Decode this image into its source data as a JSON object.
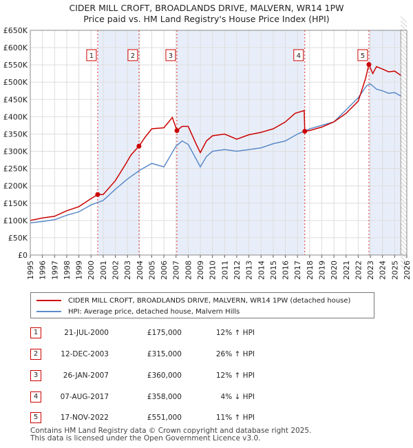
{
  "title": "CIDER MILL CROFT, BROADLANDS DRIVE, MALVERN, WR14 1PW",
  "subtitle": "Price paid vs. HM Land Registry's House Price Index (HPI)",
  "chart_data": {
    "type": "line",
    "x_range": [
      1995,
      2026
    ],
    "ylim": [
      0,
      650000
    ],
    "y_ticks": [
      {
        "v": 0,
        "label": "£0"
      },
      {
        "v": 50000,
        "label": "£50K"
      },
      {
        "v": 100000,
        "label": "£100K"
      },
      {
        "v": 150000,
        "label": "£150K"
      },
      {
        "v": 200000,
        "label": "£200K"
      },
      {
        "v": 250000,
        "label": "£250K"
      },
      {
        "v": 300000,
        "label": "£300K"
      },
      {
        "v": 350000,
        "label": "£350K"
      },
      {
        "v": 400000,
        "label": "£400K"
      },
      {
        "v": 450000,
        "label": "£450K"
      },
      {
        "v": 500000,
        "label": "£500K"
      },
      {
        "v": 550000,
        "label": "£550K"
      },
      {
        "v": 600000,
        "label": "£600K"
      },
      {
        "v": 650000,
        "label": "£650K"
      }
    ],
    "x_ticks": [
      "1995",
      "1996",
      "1997",
      "1998",
      "1999",
      "2000",
      "2001",
      "2002",
      "2003",
      "2004",
      "2005",
      "2006",
      "2007",
      "2008",
      "2009",
      "2010",
      "2011",
      "2012",
      "2013",
      "2014",
      "2015",
      "2016",
      "2017",
      "2018",
      "2019",
      "2020",
      "2021",
      "2022",
      "2023",
      "2024",
      "2025",
      "2026"
    ],
    "series": [
      {
        "name": "CIDER MILL CROFT, BROADLANDS DRIVE, MALVERN, WR14 1PW (detached house)",
        "color": "#cc0000",
        "points": [
          [
            1995,
            100000
          ],
          [
            1996,
            107000
          ],
          [
            1997,
            112000
          ],
          [
            1998,
            128000
          ],
          [
            1999,
            140000
          ],
          [
            2000,
            163000
          ],
          [
            2000.55,
            175000
          ],
          [
            2001,
            175000
          ],
          [
            2002,
            215000
          ],
          [
            2002.8,
            260000
          ],
          [
            2003.3,
            290000
          ],
          [
            2003.95,
            315000
          ],
          [
            2004.5,
            343000
          ],
          [
            2005,
            365000
          ],
          [
            2006,
            368000
          ],
          [
            2006.7,
            398000
          ],
          [
            2007.07,
            360000
          ],
          [
            2007.5,
            372000
          ],
          [
            2008,
            372000
          ],
          [
            2008.7,
            318000
          ],
          [
            2009,
            296000
          ],
          [
            2009.5,
            330000
          ],
          [
            2010,
            345000
          ],
          [
            2011,
            350000
          ],
          [
            2012,
            335000
          ],
          [
            2013,
            348000
          ],
          [
            2014,
            355000
          ],
          [
            2015,
            365000
          ],
          [
            2016,
            385000
          ],
          [
            2016.8,
            410000
          ],
          [
            2017.55,
            418000
          ],
          [
            2017.6,
            358000
          ],
          [
            2018,
            360000
          ],
          [
            2019,
            370000
          ],
          [
            2020,
            385000
          ],
          [
            2021,
            410000
          ],
          [
            2022,
            445000
          ],
          [
            2022.6,
            510000
          ],
          [
            2022.88,
            551000
          ],
          [
            2023.2,
            525000
          ],
          [
            2023.5,
            545000
          ],
          [
            2024,
            538000
          ],
          [
            2024.5,
            530000
          ],
          [
            2025,
            532000
          ],
          [
            2025.5,
            520000
          ]
        ]
      },
      {
        "name": "HPI: Average price, detached house, Malvern Hills",
        "color": "#5b8ac8",
        "points": [
          [
            1995,
            93000
          ],
          [
            1996,
            97000
          ],
          [
            1997,
            102000
          ],
          [
            1998,
            115000
          ],
          [
            1999,
            125000
          ],
          [
            2000,
            145000
          ],
          [
            2001,
            158000
          ],
          [
            2002,
            190000
          ],
          [
            2003,
            220000
          ],
          [
            2004,
            245000
          ],
          [
            2005,
            265000
          ],
          [
            2006,
            255000
          ],
          [
            2007,
            315000
          ],
          [
            2007.5,
            330000
          ],
          [
            2008,
            320000
          ],
          [
            2008.7,
            275000
          ],
          [
            2009,
            255000
          ],
          [
            2009.5,
            285000
          ],
          [
            2010,
            300000
          ],
          [
            2011,
            305000
          ],
          [
            2012,
            300000
          ],
          [
            2013,
            305000
          ],
          [
            2014,
            310000
          ],
          [
            2015,
            322000
          ],
          [
            2016,
            330000
          ],
          [
            2017,
            350000
          ],
          [
            2018,
            365000
          ],
          [
            2019,
            375000
          ],
          [
            2020,
            385000
          ],
          [
            2021,
            420000
          ],
          [
            2022,
            455000
          ],
          [
            2022.7,
            490000
          ],
          [
            2023,
            495000
          ],
          [
            2023.5,
            480000
          ],
          [
            2024,
            475000
          ],
          [
            2024.5,
            468000
          ],
          [
            2025,
            470000
          ],
          [
            2025.5,
            460000
          ]
        ]
      }
    ],
    "sales": [
      {
        "n": "1",
        "date": "21-JUL-2000",
        "x": 2000.55,
        "price": 175000,
        "price_label": "£175,000",
        "hpi": "12% ↑ HPI"
      },
      {
        "n": "2",
        "date": "12-DEC-2003",
        "x": 2003.95,
        "price": 315000,
        "price_label": "£315,000",
        "hpi": "26% ↑ HPI"
      },
      {
        "n": "3",
        "date": "26-JAN-2007",
        "x": 2007.07,
        "price": 360000,
        "price_label": "£360,000",
        "hpi": "12% ↑ HPI"
      },
      {
        "n": "4",
        "date": "07-AUG-2017",
        "x": 2017.6,
        "price": 358000,
        "price_label": "£358,000",
        "hpi": "4% ↓ HPI"
      },
      {
        "n": "5",
        "date": "17-NOV-2022",
        "x": 2022.88,
        "price": 551000,
        "price_label": "£551,000",
        "hpi": "11% ↑ HPI"
      }
    ],
    "projection_start": 2025.5,
    "shaded_periods": [
      [
        2000.55,
        2003.95
      ],
      [
        2007.07,
        2017.6
      ],
      [
        2022.88,
        2025.5
      ]
    ]
  },
  "legend": {
    "property": "CIDER MILL CROFT, BROADLANDS DRIVE, MALVERN, WR14 1PW (detached house)",
    "hpi": "HPI: Average price, detached house, Malvern Hills"
  },
  "footer": {
    "line1": "Contains HM Land Registry data © Crown copyright and database right 2025.",
    "line2": "This data is licensed under the Open Government Licence v3.0."
  }
}
